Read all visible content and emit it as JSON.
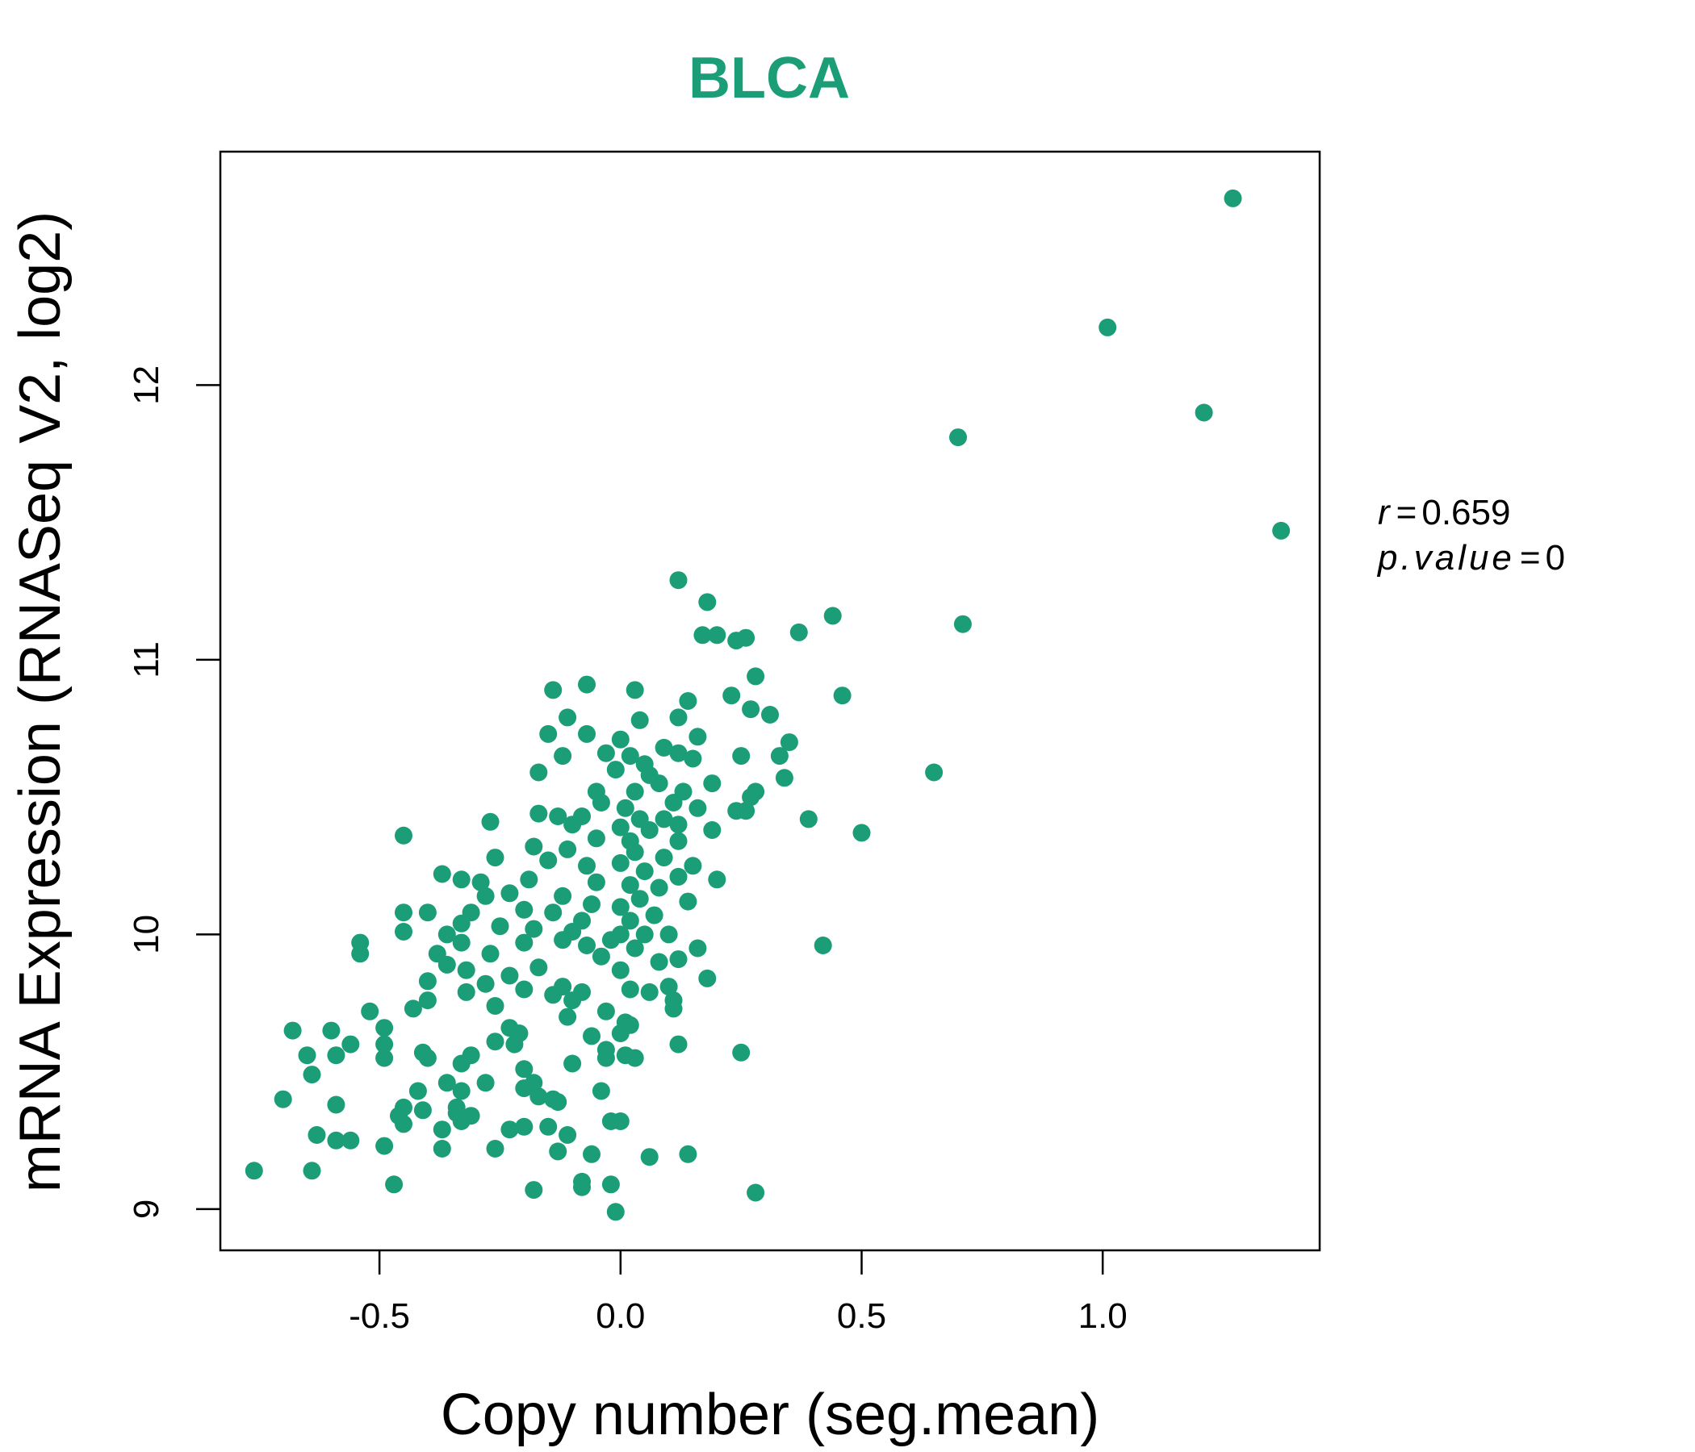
{
  "chart_data": {
    "type": "scatter",
    "title": "BLCA",
    "xlabel": "Copy number (seg.mean)",
    "ylabel": "mRNA Expression (RNASeq V2, log2)",
    "xlim": [
      -0.83,
      1.45
    ],
    "ylim": [
      8.85,
      12.85
    ],
    "xticks": [
      -0.5,
      0.0,
      0.5,
      1.0
    ],
    "xtick_labels": [
      "-0.5",
      "0.0",
      "0.5",
      "1.0"
    ],
    "yticks": [
      9,
      10,
      11,
      12
    ],
    "ytick_labels": [
      "9",
      "10",
      "11",
      "12"
    ],
    "grid": false,
    "legend": null,
    "stats": {
      "r_label": "r",
      "r_value": "0.659",
      "p_label": "p.value",
      "p_value": "0"
    },
    "colors": {
      "points": "#1b9e77",
      "title": "#1b9e77",
      "axes": "#000000"
    },
    "points": [
      [
        1.27,
        12.68
      ],
      [
        1.01,
        12.21
      ],
      [
        1.21,
        11.9
      ],
      [
        0.7,
        11.81
      ],
      [
        1.37,
        11.47
      ],
      [
        0.71,
        11.13
      ],
      [
        0.12,
        11.29
      ],
      [
        0.18,
        11.21
      ],
      [
        0.44,
        11.16
      ],
      [
        0.37,
        11.1
      ],
      [
        0.17,
        11.09
      ],
      [
        0.2,
        11.09
      ],
      [
        0.24,
        11.07
      ],
      [
        0.26,
        11.08
      ],
      [
        0.28,
        10.94
      ],
      [
        0.46,
        10.87
      ],
      [
        0.14,
        10.85
      ],
      [
        0.23,
        10.87
      ],
      [
        0.03,
        10.89
      ],
      [
        -0.07,
        10.91
      ],
      [
        -0.14,
        10.89
      ],
      [
        0.27,
        10.82
      ],
      [
        0.31,
        10.8
      ],
      [
        0.12,
        10.79
      ],
      [
        -0.11,
        10.79
      ],
      [
        0.04,
        10.78
      ],
      [
        -0.15,
        10.73
      ],
      [
        -0.07,
        10.73
      ],
      [
        0.0,
        10.71
      ],
      [
        0.16,
        10.72
      ],
      [
        0.35,
        10.7
      ],
      [
        0.09,
        10.68
      ],
      [
        0.12,
        10.66
      ],
      [
        0.02,
        10.65
      ],
      [
        0.05,
        10.62
      ],
      [
        -0.03,
        10.66
      ],
      [
        -0.12,
        10.65
      ],
      [
        0.15,
        10.64
      ],
      [
        0.25,
        10.65
      ],
      [
        0.33,
        10.65
      ],
      [
        -0.17,
        10.59
      ],
      [
        -0.01,
        10.6
      ],
      [
        0.06,
        10.58
      ],
      [
        0.65,
        10.59
      ],
      [
        0.34,
        10.57
      ],
      [
        0.19,
        10.55
      ],
      [
        0.08,
        10.55
      ],
      [
        -0.05,
        10.52
      ],
      [
        0.03,
        10.52
      ],
      [
        0.13,
        10.52
      ],
      [
        0.28,
        10.52
      ],
      [
        0.27,
        10.5
      ],
      [
        0.11,
        10.48
      ],
      [
        -0.04,
        10.48
      ],
      [
        0.01,
        10.46
      ],
      [
        0.16,
        10.46
      ],
      [
        0.24,
        10.45
      ],
      [
        0.26,
        10.45
      ],
      [
        -0.17,
        10.44
      ],
      [
        -0.13,
        10.43
      ],
      [
        -0.08,
        10.43
      ],
      [
        0.04,
        10.42
      ],
      [
        0.09,
        10.42
      ],
      [
        0.12,
        10.4
      ],
      [
        0.39,
        10.42
      ],
      [
        -0.27,
        10.41
      ],
      [
        -0.1,
        10.4
      ],
      [
        0.0,
        10.39
      ],
      [
        0.06,
        10.38
      ],
      [
        0.19,
        10.38
      ],
      [
        0.5,
        10.37
      ],
      [
        -0.45,
        10.36
      ],
      [
        -0.05,
        10.35
      ],
      [
        0.02,
        10.34
      ],
      [
        0.12,
        10.34
      ],
      [
        -0.18,
        10.32
      ],
      [
        -0.11,
        10.31
      ],
      [
        0.03,
        10.3
      ],
      [
        0.09,
        10.28
      ],
      [
        -0.26,
        10.28
      ],
      [
        -0.15,
        10.27
      ],
      [
        0.0,
        10.26
      ],
      [
        0.15,
        10.25
      ],
      [
        -0.07,
        10.25
      ],
      [
        0.05,
        10.23
      ],
      [
        -0.37,
        10.22
      ],
      [
        -0.33,
        10.2
      ],
      [
        -0.29,
        10.19
      ],
      [
        -0.19,
        10.2
      ],
      [
        0.12,
        10.21
      ],
      [
        0.2,
        10.2
      ],
      [
        -0.05,
        10.19
      ],
      [
        0.02,
        10.18
      ],
      [
        0.08,
        10.17
      ],
      [
        -0.23,
        10.15
      ],
      [
        -0.28,
        10.14
      ],
      [
        -0.12,
        10.14
      ],
      [
        0.04,
        10.13
      ],
      [
        0.14,
        10.12
      ],
      [
        -0.06,
        10.11
      ],
      [
        0.0,
        10.1
      ],
      [
        -0.2,
        10.09
      ],
      [
        -0.31,
        10.08
      ],
      [
        -0.45,
        10.08
      ],
      [
        -0.4,
        10.08
      ],
      [
        -0.14,
        10.08
      ],
      [
        0.07,
        10.07
      ],
      [
        0.02,
        10.05
      ],
      [
        -0.08,
        10.05
      ],
      [
        -0.33,
        10.04
      ],
      [
        -0.36,
        10.0
      ],
      [
        -0.45,
        10.01
      ],
      [
        -0.25,
        10.03
      ],
      [
        -0.18,
        10.02
      ],
      [
        -0.1,
        10.01
      ],
      [
        0.0,
        10.0
      ],
      [
        0.05,
        10.0
      ],
      [
        0.1,
        10.0
      ],
      [
        -0.02,
        9.98
      ],
      [
        -0.12,
        9.98
      ],
      [
        -0.54,
        9.97
      ],
      [
        -0.2,
        9.97
      ],
      [
        -0.33,
        9.97
      ],
      [
        -0.07,
        9.96
      ],
      [
        0.03,
        9.95
      ],
      [
        0.16,
        9.95
      ],
      [
        0.42,
        9.96
      ],
      [
        -0.54,
        9.93
      ],
      [
        -0.38,
        9.93
      ],
      [
        -0.27,
        9.93
      ],
      [
        -0.04,
        9.92
      ],
      [
        0.12,
        9.91
      ],
      [
        0.08,
        9.9
      ],
      [
        -0.36,
        9.89
      ],
      [
        -0.32,
        9.87
      ],
      [
        -0.17,
        9.88
      ],
      [
        0.0,
        9.87
      ],
      [
        -0.23,
        9.85
      ],
      [
        0.18,
        9.84
      ],
      [
        -0.4,
        9.83
      ],
      [
        -0.28,
        9.82
      ],
      [
        -0.12,
        9.81
      ],
      [
        0.02,
        9.8
      ],
      [
        0.1,
        9.81
      ],
      [
        0.06,
        9.79
      ],
      [
        -0.32,
        9.79
      ],
      [
        -0.08,
        9.79
      ],
      [
        -0.2,
        9.8
      ],
      [
        -0.14,
        9.78
      ],
      [
        -0.4,
        9.76
      ],
      [
        -0.1,
        9.76
      ],
      [
        0.11,
        9.76
      ],
      [
        -0.43,
        9.73
      ],
      [
        -0.26,
        9.74
      ],
      [
        -0.03,
        9.72
      ],
      [
        0.11,
        9.73
      ],
      [
        -0.52,
        9.72
      ],
      [
        -0.11,
        9.7
      ],
      [
        0.01,
        9.68
      ],
      [
        0.02,
        9.67
      ],
      [
        -0.68,
        9.65
      ],
      [
        -0.6,
        9.65
      ],
      [
        -0.49,
        9.66
      ],
      [
        -0.23,
        9.66
      ],
      [
        -0.21,
        9.64
      ],
      [
        0.0,
        9.64
      ],
      [
        -0.06,
        9.63
      ],
      [
        -0.26,
        9.61
      ],
      [
        -0.22,
        9.6
      ],
      [
        0.12,
        9.6
      ],
      [
        -0.56,
        9.6
      ],
      [
        -0.49,
        9.6
      ],
      [
        -0.03,
        9.58
      ],
      [
        -0.65,
        9.56
      ],
      [
        -0.59,
        9.56
      ],
      [
        -0.41,
        9.57
      ],
      [
        -0.31,
        9.56
      ],
      [
        0.01,
        9.56
      ],
      [
        0.25,
        9.57
      ],
      [
        -0.49,
        9.55
      ],
      [
        -0.4,
        9.55
      ],
      [
        -0.03,
        9.55
      ],
      [
        0.03,
        9.55
      ],
      [
        -0.33,
        9.53
      ],
      [
        -0.1,
        9.53
      ],
      [
        -0.2,
        9.51
      ],
      [
        -0.64,
        9.49
      ],
      [
        -0.36,
        9.46
      ],
      [
        -0.28,
        9.46
      ],
      [
        -0.18,
        9.46
      ],
      [
        -0.2,
        9.44
      ],
      [
        -0.42,
        9.43
      ],
      [
        -0.33,
        9.43
      ],
      [
        -0.04,
        9.43
      ],
      [
        -0.7,
        9.4
      ],
      [
        -0.14,
        9.4
      ],
      [
        -0.17,
        9.41
      ],
      [
        -0.13,
        9.39
      ],
      [
        -0.59,
        9.38
      ],
      [
        -0.45,
        9.37
      ],
      [
        -0.41,
        9.36
      ],
      [
        -0.34,
        9.37
      ],
      [
        -0.34,
        9.35
      ],
      [
        -0.31,
        9.34
      ],
      [
        -0.46,
        9.34
      ],
      [
        -0.33,
        9.32
      ],
      [
        -0.02,
        9.32
      ],
      [
        0.0,
        9.32
      ],
      [
        -0.45,
        9.31
      ],
      [
        -0.2,
        9.3
      ],
      [
        -0.15,
        9.3
      ],
      [
        -0.37,
        9.29
      ],
      [
        -0.23,
        9.29
      ],
      [
        -0.63,
        9.27
      ],
      [
        -0.11,
        9.27
      ],
      [
        -0.59,
        9.25
      ],
      [
        -0.56,
        9.25
      ],
      [
        -0.49,
        9.23
      ],
      [
        -0.37,
        9.22
      ],
      [
        -0.26,
        9.22
      ],
      [
        -0.13,
        9.21
      ],
      [
        -0.06,
        9.2
      ],
      [
        0.06,
        9.19
      ],
      [
        0.14,
        9.2
      ],
      [
        -0.76,
        9.14
      ],
      [
        -0.64,
        9.14
      ],
      [
        -0.47,
        9.09
      ],
      [
        -0.18,
        9.07
      ],
      [
        -0.08,
        9.08
      ],
      [
        -0.08,
        9.1
      ],
      [
        -0.02,
        9.09
      ],
      [
        0.28,
        9.06
      ],
      [
        -0.01,
        8.99
      ]
    ]
  }
}
